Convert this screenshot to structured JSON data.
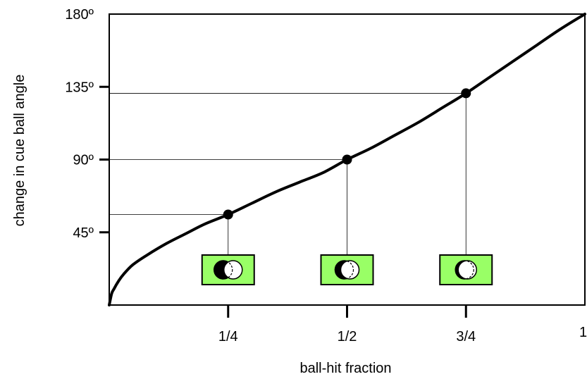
{
  "chart_data": {
    "type": "line",
    "title": "",
    "xlabel": "ball-hit fraction",
    "ylabel": "change in cue ball angle",
    "xlim": [
      0,
      1
    ],
    "ylim": [
      0,
      180
    ],
    "x_ticks": [
      {
        "value": 0.25,
        "label": "1/4"
      },
      {
        "value": 0.5,
        "label": "1/2"
      },
      {
        "value": 0.75,
        "label": "3/4"
      },
      {
        "value": 1.0,
        "label": "1"
      }
    ],
    "y_ticks": [
      {
        "value": 45,
        "label": "45º"
      },
      {
        "value": 90,
        "label": "90º"
      },
      {
        "value": 135,
        "label": "135º"
      },
      {
        "value": 180,
        "label": "180º"
      }
    ],
    "curve": {
      "x": [
        0,
        0.005,
        0.01,
        0.02,
        0.03,
        0.05,
        0.08,
        0.12,
        0.16,
        0.2,
        0.25,
        0.3,
        0.35,
        0.4,
        0.45,
        0.5,
        0.55,
        0.6,
        0.65,
        0.7,
        0.75,
        0.8,
        0.85,
        0.9,
        0.95,
        1.0
      ],
      "y": [
        0,
        7,
        10,
        15,
        19,
        25,
        31,
        38,
        44,
        50,
        56,
        63,
        70,
        76,
        82,
        90,
        97,
        105,
        113,
        122,
        131,
        141,
        151,
        161,
        171,
        180
      ]
    },
    "highlight_points": [
      {
        "x": 0.25,
        "y": 56
      },
      {
        "x": 0.5,
        "y": 90
      },
      {
        "x": 0.75,
        "y": 131
      }
    ],
    "grid": false,
    "legend": "none",
    "colors": {
      "line": "#000000",
      "icon_background": "#99ff66",
      "icon_border": "#000000",
      "cue_ball": "#ffffff",
      "object_ball": "#000000"
    }
  }
}
